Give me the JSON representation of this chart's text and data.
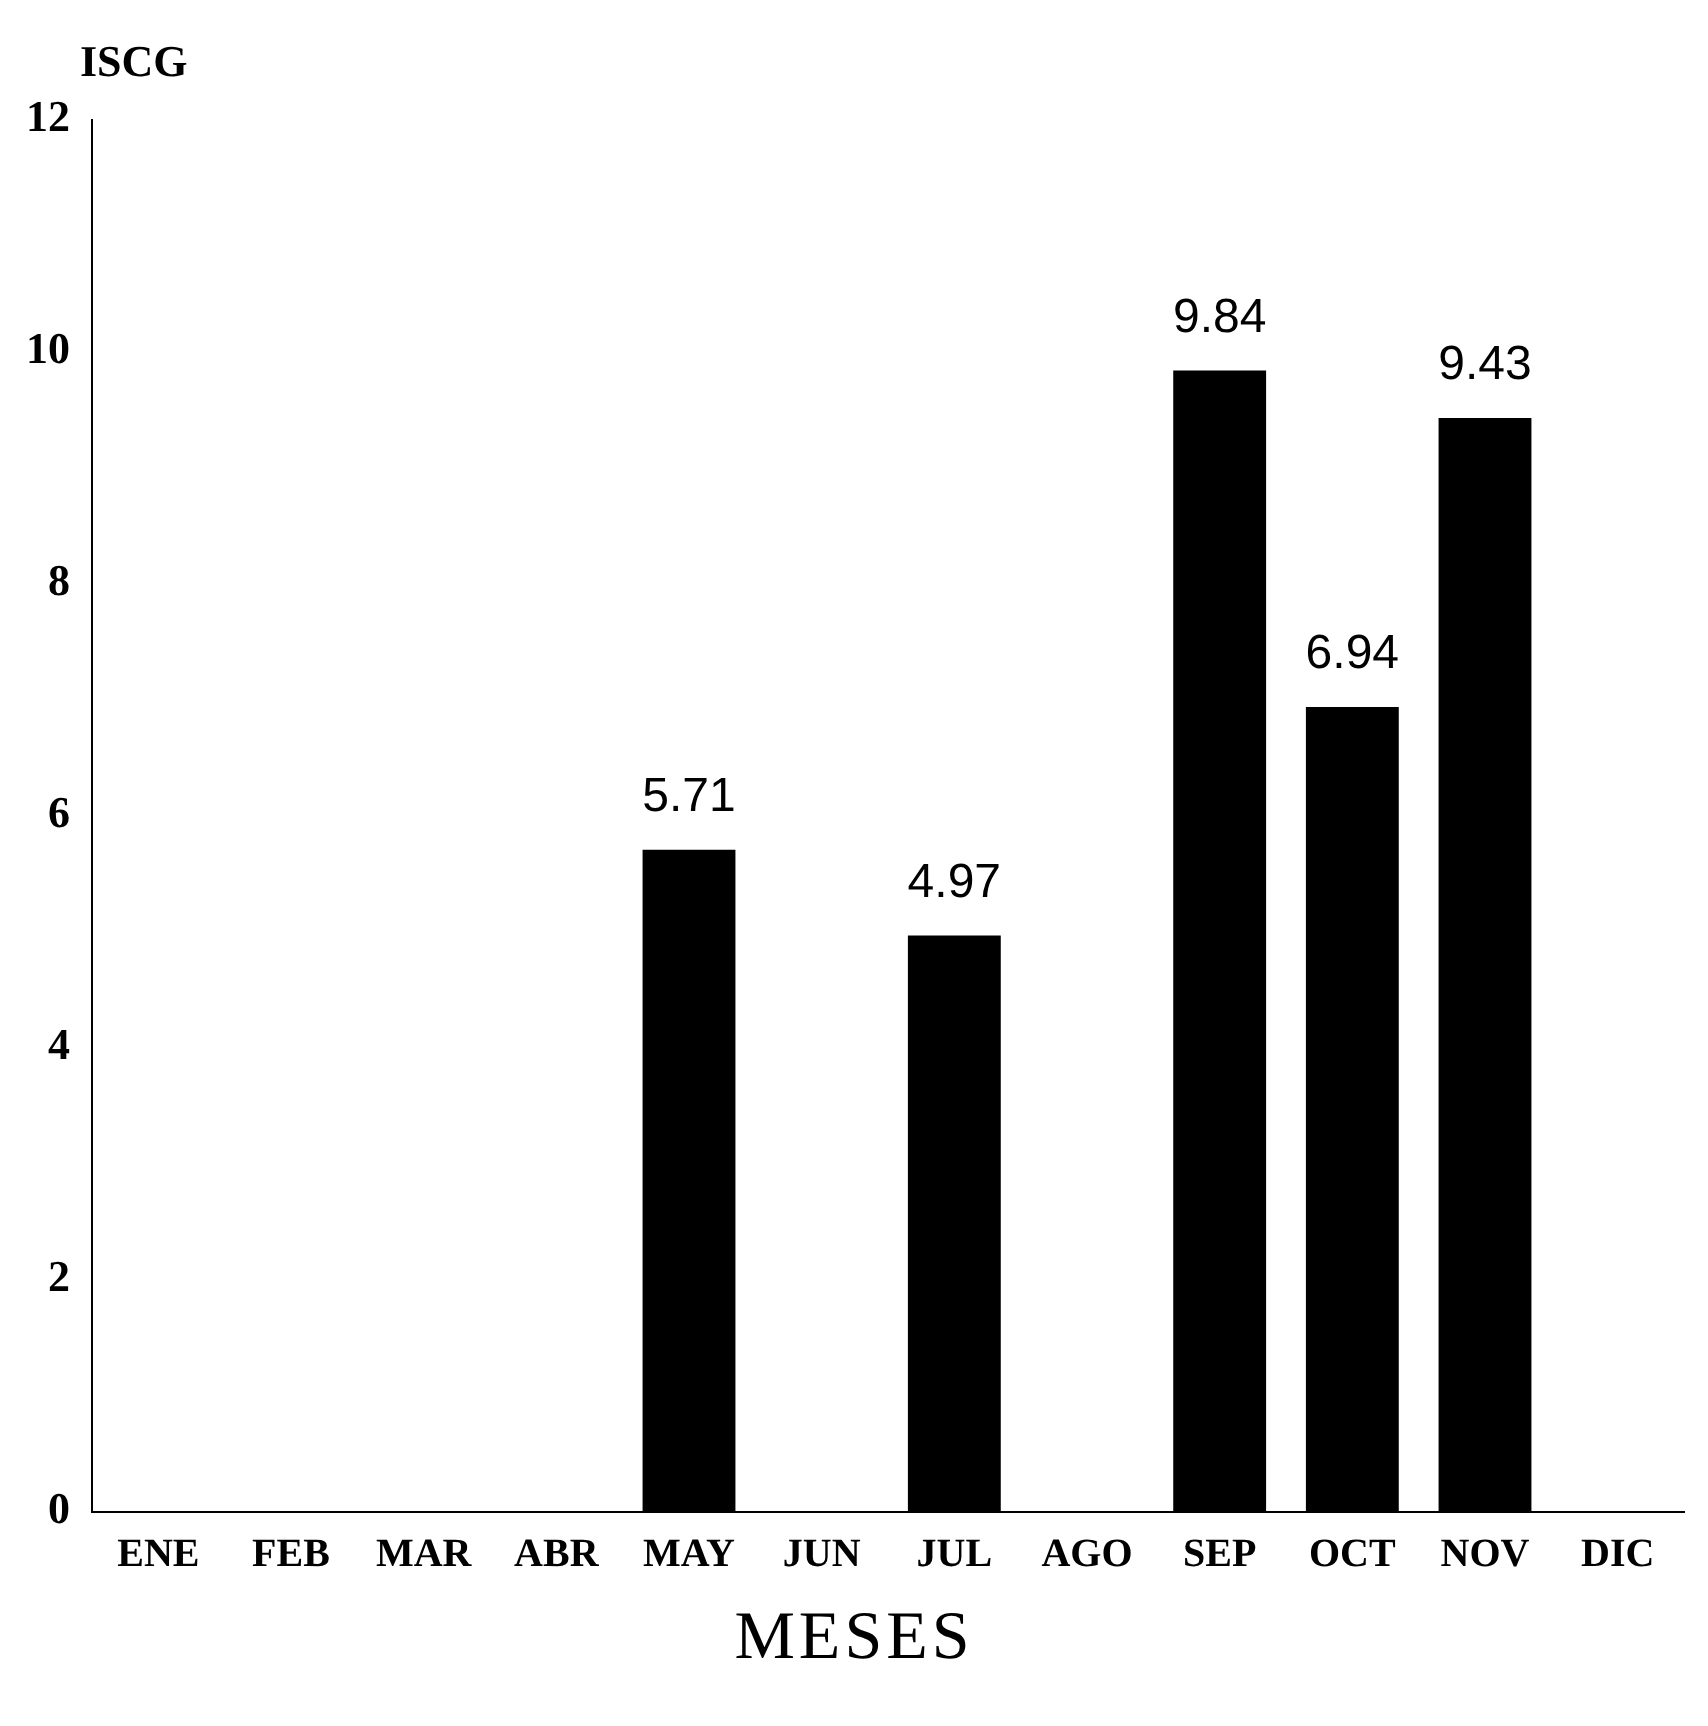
{
  "chart_data": {
    "type": "bar",
    "ylabel": "ISCG",
    "xlabel": "MESES",
    "categories": [
      "ENE",
      "FEB",
      "MAR",
      "ABR",
      "MAY",
      "JUN",
      "JUL",
      "AGO",
      "SEP",
      "OCT",
      "NOV",
      "DIC"
    ],
    "values": [
      null,
      null,
      null,
      null,
      5.71,
      null,
      4.97,
      null,
      9.84,
      6.94,
      9.43,
      null
    ],
    "color": "#000000",
    "ylim": [
      0,
      12
    ],
    "yticks": [
      0,
      2,
      4,
      6,
      8,
      10,
      12
    ],
    "grid": false,
    "legend": false,
    "data_labels": true
  }
}
